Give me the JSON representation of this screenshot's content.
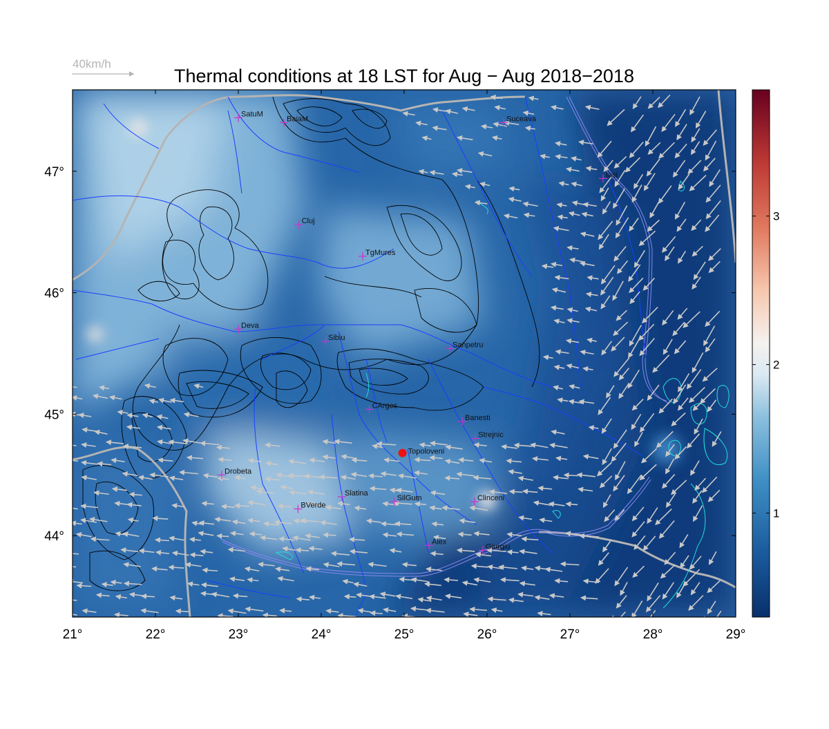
{
  "title": "Thermal conditions at 18 LST for Aug − Aug  2018−2018",
  "wind_scale": {
    "label": "40km/h",
    "speed_kmh": 40
  },
  "axes": {
    "lon_range": [
      21,
      29
    ],
    "lat_range": [
      43.33,
      47.67
    ],
    "x_ticks": [
      21,
      22,
      23,
      24,
      25,
      26,
      27,
      28,
      29
    ],
    "y_ticks": [
      44,
      45,
      46,
      47
    ],
    "x_tick_labels": [
      "21°",
      "22°",
      "23°",
      "24°",
      "25°",
      "26°",
      "27°",
      "28°",
      "29°"
    ],
    "y_tick_labels": [
      "44°",
      "45°",
      "46°",
      "47°"
    ]
  },
  "colorbar": {
    "range": [
      0.3,
      3.85
    ],
    "ticks": [
      1,
      2,
      3
    ],
    "tick_labels": [
      "1",
      "2",
      "3"
    ],
    "colors": [
      "#08306b",
      "#2166ac",
      "#4393c3",
      "#92c5de",
      "#f7f7f7",
      "#f4a582",
      "#d6604d",
      "#b2182b",
      "#67001f"
    ]
  },
  "colors": {
    "city_marker": "#cc33cc",
    "highlight_marker": "#ee1111",
    "wind_arrow": "#c8c8c8",
    "rivers": "#1a3fff",
    "borders": "#b4b4b4",
    "lakes": "#22dddd",
    "contours": "#000000"
  },
  "cities": [
    {
      "name": "SatuM",
      "lon": 23.0,
      "lat": 47.44
    },
    {
      "name": "BaiaM",
      "lon": 23.55,
      "lat": 47.4
    },
    {
      "name": "Suceava",
      "lon": 26.2,
      "lat": 47.4
    },
    {
      "name": "Iasi",
      "lon": 27.4,
      "lat": 46.94
    },
    {
      "name": "Cluj",
      "lon": 23.73,
      "lat": 46.56
    },
    {
      "name": "TgMures",
      "lon": 24.5,
      "lat": 46.3
    },
    {
      "name": "Deva",
      "lon": 23.0,
      "lat": 45.7
    },
    {
      "name": "Sibiu",
      "lon": 24.05,
      "lat": 45.6
    },
    {
      "name": "Sanpetru",
      "lon": 25.55,
      "lat": 45.54
    },
    {
      "name": "CArges",
      "lon": 24.58,
      "lat": 45.04
    },
    {
      "name": "Banesti",
      "lon": 25.7,
      "lat": 44.94
    },
    {
      "name": "Strejnic",
      "lon": 25.86,
      "lat": 44.8
    },
    {
      "name": "Drobeta",
      "lon": 22.8,
      "lat": 44.5
    },
    {
      "name": "Slatina",
      "lon": 24.25,
      "lat": 44.32
    },
    {
      "name": "SilGum",
      "lon": 24.88,
      "lat": 44.28
    },
    {
      "name": "BVerde",
      "lon": 23.72,
      "lat": 44.22
    },
    {
      "name": "Clinceni",
      "lon": 25.85,
      "lat": 44.28
    },
    {
      "name": "Alex",
      "lon": 25.3,
      "lat": 43.92
    },
    {
      "name": "Giurgiu",
      "lon": 25.95,
      "lat": 43.88
    }
  ],
  "highlight": {
    "name": "Topoloveni",
    "lon": 24.98,
    "lat": 44.68
  },
  "hotspots": [
    {
      "lon": 25.95,
      "lat": 44.33,
      "value": 2.7
    },
    {
      "lon": 21.8,
      "lat": 47.37,
      "value": 2.4
    },
    {
      "lon": 21.25,
      "lat": 45.66,
      "value": 2.3
    }
  ]
}
